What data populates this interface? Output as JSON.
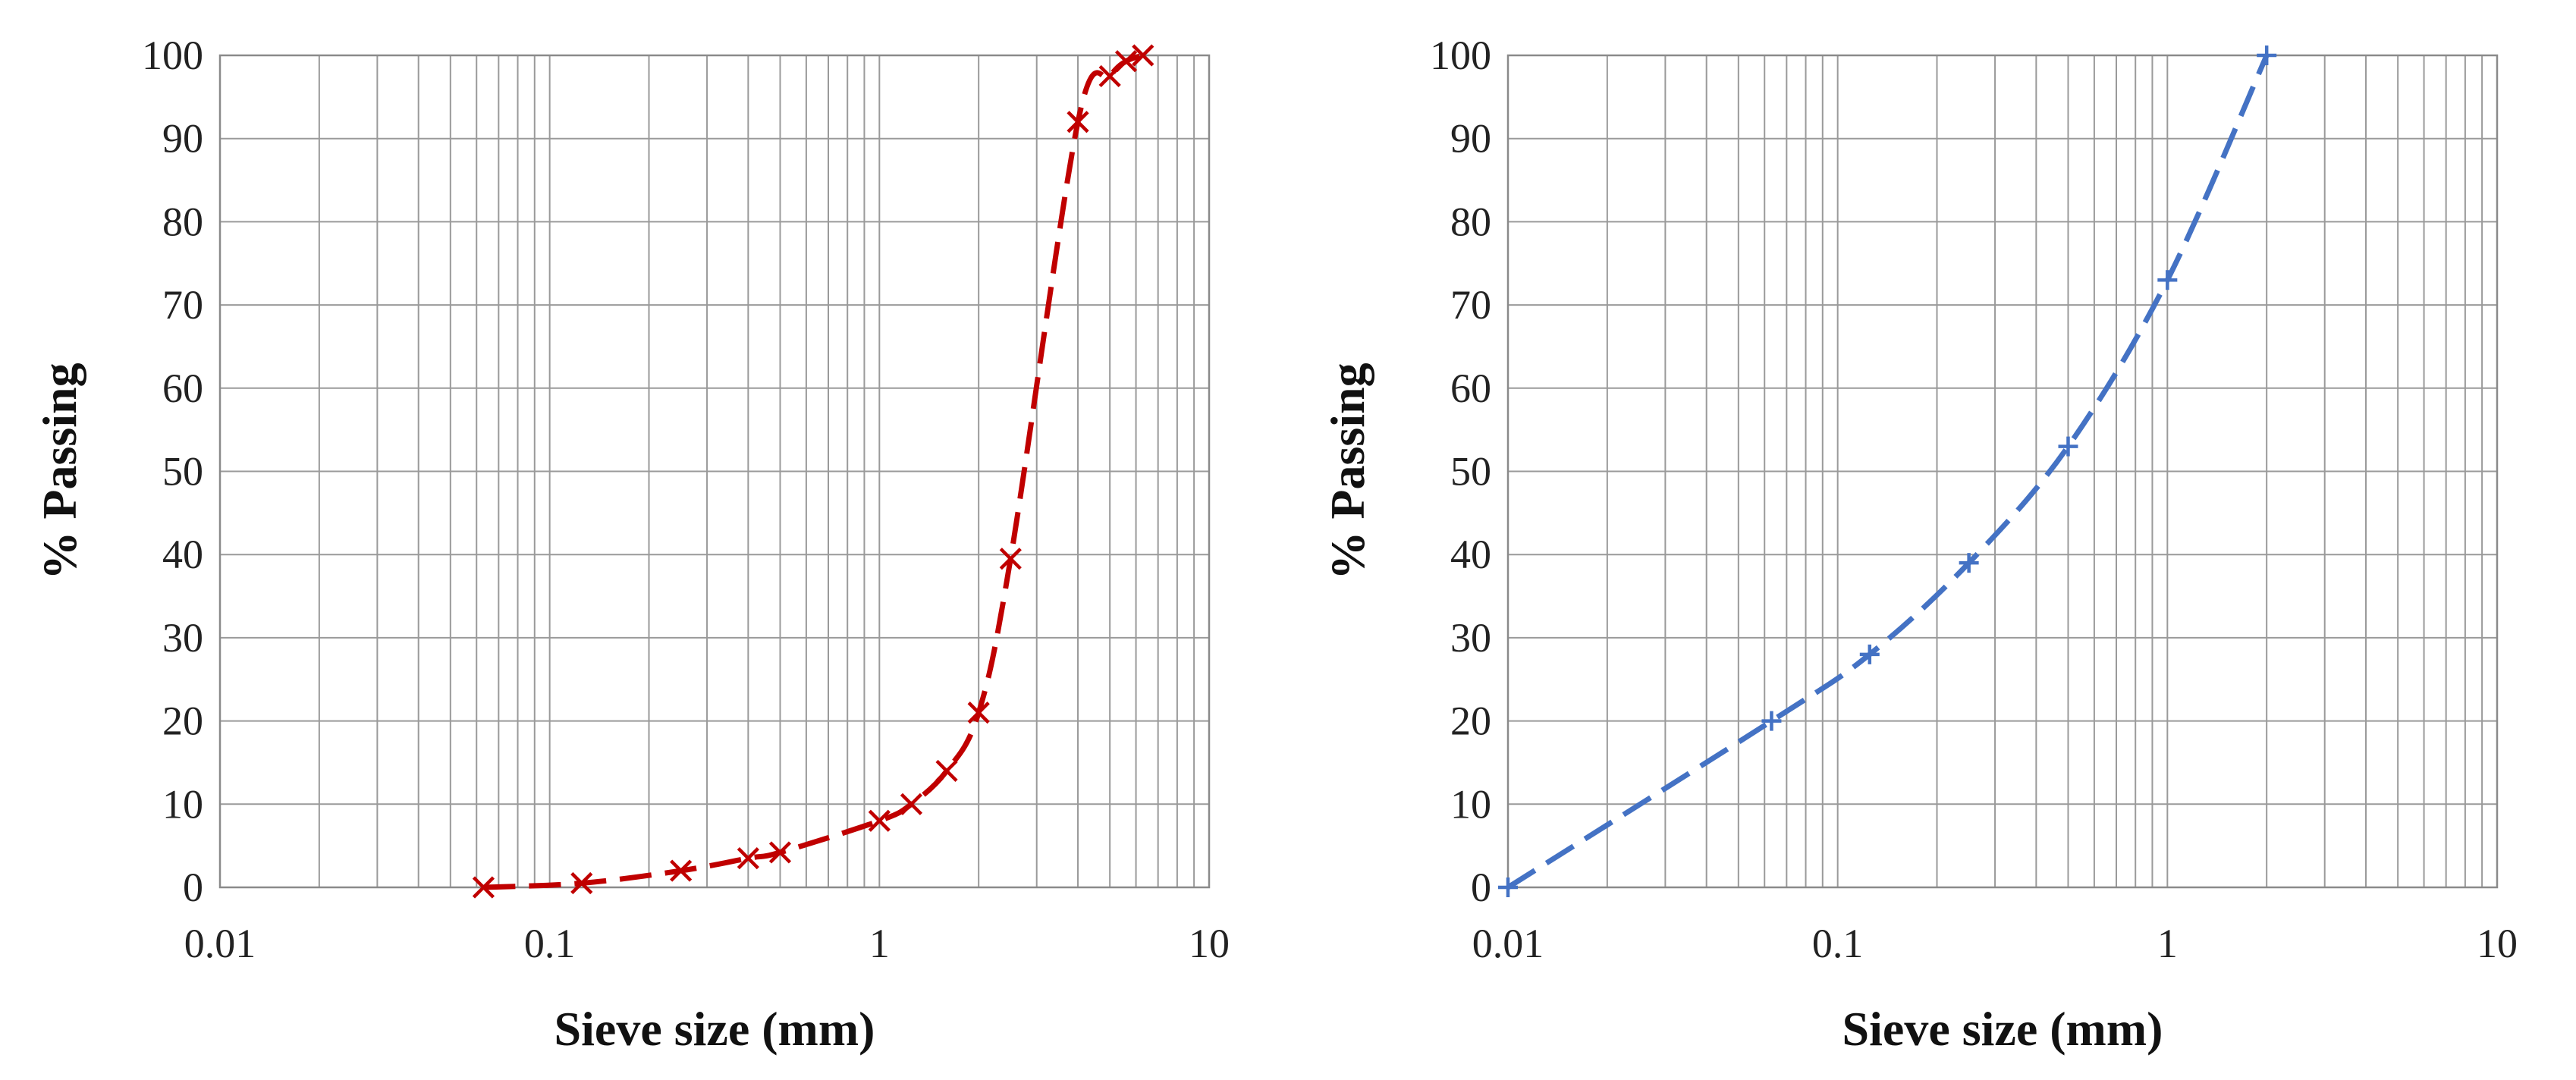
{
  "chart_data": [
    {
      "type": "line",
      "title": "",
      "xlabel": "Sieve size (mm)",
      "ylabel": "% Passing",
      "xscale": "log",
      "xlim": [
        0.01,
        10
      ],
      "ylim": [
        0,
        100
      ],
      "x_ticks": [
        "0.01",
        "0.1",
        "1",
        "10"
      ],
      "y_ticks": [
        "0",
        "10",
        "20",
        "30",
        "40",
        "50",
        "60",
        "70",
        "80",
        "90",
        "100"
      ],
      "grid": true,
      "legend": "none",
      "line_style": "dashed",
      "marker": "x",
      "color": "#c00000",
      "series": [
        {
          "x": [
            0.063,
            0.125,
            0.25,
            0.4,
            0.5,
            1.0,
            1.25,
            1.6,
            2.0,
            2.5,
            4.0,
            5.0,
            5.6,
            6.3
          ],
          "y": [
            0,
            0.5,
            2,
            3.5,
            4.2,
            8,
            10,
            14,
            21,
            39.5,
            92,
            97.5,
            99.3,
            100
          ]
        }
      ]
    },
    {
      "type": "line",
      "title": "",
      "xlabel": "Sieve size (mm)",
      "ylabel": "% Passing",
      "xscale": "log",
      "xlim": [
        0.01,
        10
      ],
      "ylim": [
        0,
        100
      ],
      "x_ticks": [
        "0.01",
        "0.1",
        "1",
        "10"
      ],
      "y_ticks": [
        "0",
        "10",
        "20",
        "30",
        "40",
        "50",
        "60",
        "70",
        "80",
        "90",
        "100"
      ],
      "grid": true,
      "legend": "none",
      "line_style": "dashed",
      "marker": "plus",
      "color": "#4472c4",
      "series": [
        {
          "x": [
            0.01,
            0.063,
            0.125,
            0.25,
            0.5,
            1.0,
            2.0
          ],
          "y": [
            0,
            20,
            28,
            39,
            53,
            73,
            100
          ]
        }
      ]
    }
  ]
}
